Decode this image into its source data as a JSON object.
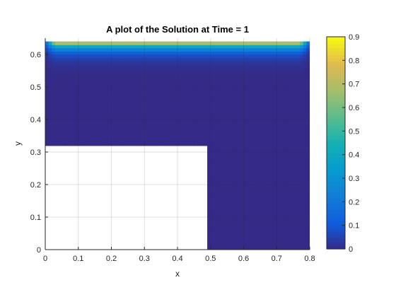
{
  "chart_data": {
    "type": "heatmap",
    "title": "A plot of the Solution at Time = 1",
    "xlabel": "x",
    "ylabel": "y",
    "xlim": [
      0,
      0.8
    ],
    "ylim": [
      0,
      0.65
    ],
    "x_ticks": [
      "0",
      "0.1",
      "0.2",
      "0.3",
      "0.4",
      "0.5",
      "0.6",
      "0.7",
      "0.8"
    ],
    "y_ticks": [
      "0",
      "0.1",
      "0.2",
      "0.3",
      "0.4",
      "0.5",
      "0.6"
    ],
    "grid": true,
    "domain": {
      "x_extent": [
        0,
        0.8
      ],
      "y_extent": [
        0,
        0.64
      ],
      "cutout": {
        "x": [
          0,
          0.49
        ],
        "y": [
          0,
          0.325
        ]
      }
    },
    "boundary_condition": {
      "edge": "top",
      "value": 0.9
    },
    "colorbar": {
      "colormap": "parula",
      "range": [
        0,
        0.9
      ],
      "ticks": [
        "0",
        "0.1",
        "0.2",
        "0.3",
        "0.4",
        "0.5",
        "0.6",
        "0.7",
        "0.8",
        "0.9"
      ]
    }
  }
}
